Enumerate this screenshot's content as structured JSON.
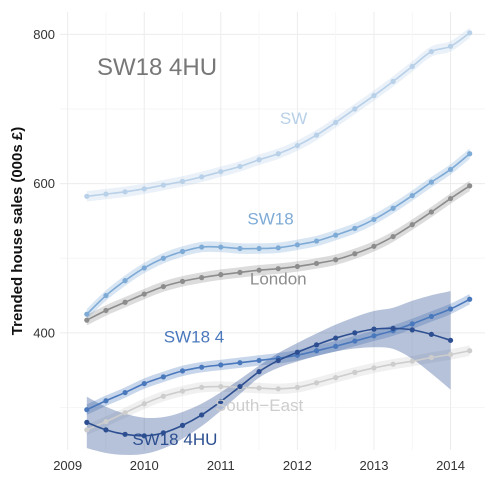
{
  "chart_data": {
    "type": "line",
    "title": "SW18 4HU",
    "xlabel": "",
    "ylabel": "Trended house sales (000s £)",
    "xlim": [
      2008.9,
      2014.45
    ],
    "ylim": [
      243,
      830
    ],
    "x_ticks": [
      2009,
      2010,
      2011,
      2012,
      2013,
      2014
    ],
    "y_ticks": [
      400,
      600,
      800
    ],
    "grid": true,
    "legend": "none (direct labels)",
    "series": [
      {
        "name": "SW",
        "color": "#b8d0e8",
        "band": true,
        "x": [
          2009.25,
          2009.5,
          2009.75,
          2010.0,
          2010.25,
          2010.5,
          2010.75,
          2011.0,
          2011.25,
          2011.5,
          2011.75,
          2012.0,
          2012.25,
          2012.5,
          2012.75,
          2013.0,
          2013.25,
          2013.5,
          2013.75,
          2014.0,
          2014.25
        ],
        "values": [
          583,
          586,
          589,
          593,
          598,
          603,
          609,
          616,
          623,
          632,
          640,
          651,
          665,
          682,
          700,
          718,
          737,
          757,
          777,
          784,
          802
        ],
        "label_pos": [
          2011.95,
          680
        ]
      },
      {
        "name": "SW18",
        "color": "#7eaad6",
        "band": true,
        "x": [
          2009.25,
          2009.5,
          2009.75,
          2010.0,
          2010.25,
          2010.5,
          2010.75,
          2011.0,
          2011.25,
          2011.5,
          2011.75,
          2012.0,
          2012.25,
          2012.5,
          2012.75,
          2013.0,
          2013.25,
          2013.5,
          2013.75,
          2014.0,
          2014.25
        ],
        "values": [
          425,
          450,
          470,
          487,
          500,
          509,
          515,
          515,
          513,
          513,
          514,
          518,
          523,
          531,
          540,
          552,
          567,
          584,
          602,
          619,
          640
        ],
        "label_pos": [
          2011.65,
          545
        ]
      },
      {
        "name": "London",
        "color": "#8c8c8c",
        "band": true,
        "x": [
          2009.25,
          2009.5,
          2009.75,
          2010.0,
          2010.25,
          2010.5,
          2010.75,
          2011.0,
          2011.25,
          2011.5,
          2011.75,
          2012.0,
          2012.25,
          2012.5,
          2012.75,
          2013.0,
          2013.25,
          2013.5,
          2013.75,
          2014.0,
          2014.25
        ],
        "values": [
          417,
          430,
          441,
          452,
          462,
          469,
          474,
          478,
          481,
          484,
          486,
          489,
          493,
          498,
          506,
          516,
          529,
          545,
          562,
          580,
          597
        ],
        "label_pos": [
          2011.75,
          465
        ]
      },
      {
        "name": "SW18 4",
        "color": "#4a78bc",
        "band": true,
        "x": [
          2009.25,
          2009.5,
          2009.75,
          2010.0,
          2010.25,
          2010.5,
          2010.75,
          2011.0,
          2011.25,
          2011.5,
          2011.75,
          2012.0,
          2012.25,
          2012.5,
          2012.75,
          2013.0,
          2013.25,
          2013.5,
          2013.75,
          2014.0,
          2014.25
        ],
        "values": [
          297,
          309,
          320,
          332,
          341,
          349,
          354,
          357,
          360,
          363,
          366,
          370,
          376,
          382,
          389,
          396,
          403,
          412,
          422,
          432,
          445
        ],
        "label_pos": [
          2010.65,
          387
        ]
      },
      {
        "name": "South−East",
        "color": "#cdcdcd",
        "band": true,
        "x": [
          2009.25,
          2009.5,
          2009.75,
          2010.0,
          2010.25,
          2010.5,
          2010.75,
          2011.0,
          2011.25,
          2011.5,
          2011.75,
          2012.0,
          2012.25,
          2012.5,
          2012.75,
          2013.0,
          2013.25,
          2013.5,
          2013.75,
          2014.0,
          2014.25
        ],
        "values": [
          270,
          281,
          293,
          305,
          315,
          322,
          327,
          328,
          327,
          326,
          325,
          327,
          333,
          340,
          347,
          353,
          358,
          362,
          367,
          371,
          376
        ],
        "label_pos": [
          2011.5,
          295
        ]
      },
      {
        "name": "SW18 4HU",
        "color": "#2d4f91",
        "band": true,
        "x": [
          2009.25,
          2009.5,
          2009.75,
          2010.0,
          2010.25,
          2010.5,
          2010.75,
          2011.0,
          2011.25,
          2011.5,
          2011.75,
          2012.0,
          2012.25,
          2012.5,
          2012.75,
          2013.0,
          2013.25,
          2013.5,
          2013.75,
          2014.0
        ],
        "values": [
          280,
          270,
          264,
          262,
          266,
          276,
          290,
          308,
          328,
          348,
          363,
          374,
          384,
          393,
          400,
          405,
          406,
          404,
          398,
          390
        ],
        "label_pos": [
          2010.4,
          250
        ]
      }
    ]
  }
}
